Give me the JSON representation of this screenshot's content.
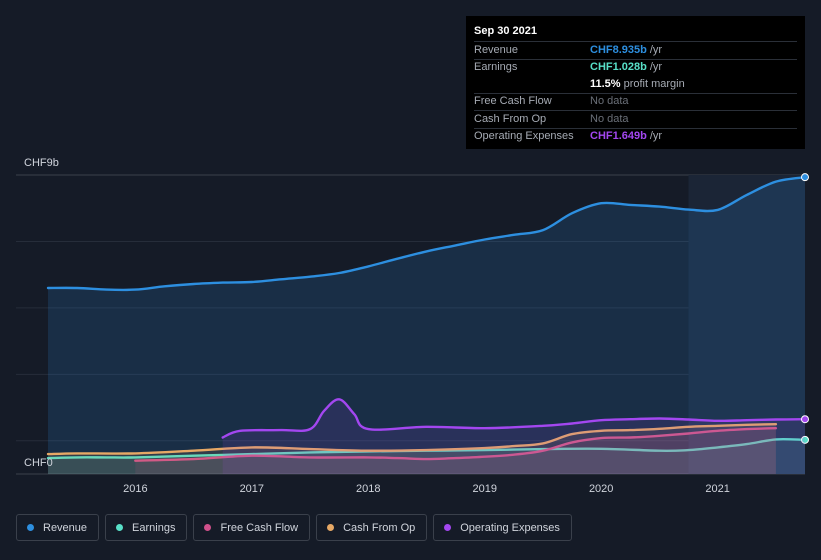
{
  "chart_data": {
    "type": "area",
    "y_top_label": "CHF9b",
    "y_bottom_label": "CHF0",
    "ylim": [
      0,
      9
    ],
    "xlim": [
      2015.25,
      2021.75
    ],
    "xticks": [
      "2016",
      "2017",
      "2018",
      "2019",
      "2020",
      "2021"
    ],
    "xtick_values": [
      2016,
      2017,
      2018,
      2019,
      2020,
      2021
    ],
    "grid": true,
    "legend_position": "bottom",
    "forecast_start": 2020.75,
    "series": [
      {
        "name": "Revenue",
        "color": "#2d8fe0",
        "x": [
          2015.25,
          2015.5,
          2015.75,
          2016.0,
          2016.25,
          2016.5,
          2016.75,
          2017.0,
          2017.25,
          2017.5,
          2017.75,
          2018.0,
          2018.25,
          2018.5,
          2018.75,
          2019.0,
          2019.25,
          2019.5,
          2019.75,
          2020.0,
          2020.25,
          2020.5,
          2020.75,
          2021.0,
          2021.25,
          2021.5,
          2021.75
        ],
        "values": [
          5.6,
          5.6,
          5.55,
          5.55,
          5.65,
          5.72,
          5.76,
          5.78,
          5.86,
          5.94,
          6.05,
          6.25,
          6.48,
          6.7,
          6.88,
          7.06,
          7.2,
          7.34,
          7.85,
          8.15,
          8.1,
          8.05,
          7.96,
          7.95,
          8.4,
          8.8,
          8.935
        ]
      },
      {
        "name": "Earnings",
        "color": "#58e0c8",
        "x": [
          2015.25,
          2015.5,
          2015.75,
          2016.0,
          2016.5,
          2017.0,
          2017.5,
          2018.0,
          2018.5,
          2019.0,
          2019.5,
          2020.0,
          2020.5,
          2020.75,
          2021.0,
          2021.25,
          2021.5,
          2021.75
        ],
        "values": [
          0.48,
          0.5,
          0.5,
          0.5,
          0.55,
          0.6,
          0.65,
          0.68,
          0.7,
          0.72,
          0.75,
          0.76,
          0.7,
          0.72,
          0.8,
          0.9,
          1.04,
          1.028
        ]
      },
      {
        "name": "Free Cash Flow",
        "color": "#d0508b",
        "x": [
          2016.0,
          2016.5,
          2017.0,
          2017.5,
          2018.0,
          2018.25,
          2018.5,
          2018.75,
          2019.0,
          2019.25,
          2019.5,
          2019.75,
          2020.0,
          2020.25,
          2020.5,
          2020.75,
          2021.0,
          2021.25,
          2021.5
        ],
        "values": [
          0.4,
          0.45,
          0.55,
          0.5,
          0.5,
          0.48,
          0.45,
          0.48,
          0.52,
          0.58,
          0.7,
          0.95,
          1.08,
          1.1,
          1.15,
          1.22,
          1.3,
          1.35,
          1.38
        ]
      },
      {
        "name": "Cash From Op",
        "color": "#e6a865",
        "x": [
          2015.25,
          2015.5,
          2016.0,
          2016.5,
          2017.0,
          2017.5,
          2018.0,
          2018.5,
          2019.0,
          2019.25,
          2019.5,
          2019.75,
          2020.0,
          2020.25,
          2020.5,
          2020.75,
          2021.0,
          2021.25,
          2021.5
        ],
        "values": [
          0.6,
          0.62,
          0.62,
          0.7,
          0.8,
          0.75,
          0.7,
          0.72,
          0.78,
          0.84,
          0.92,
          1.2,
          1.3,
          1.32,
          1.36,
          1.42,
          1.45,
          1.48,
          1.5
        ]
      },
      {
        "name": "Operating Expenses",
        "color": "#a347f0",
        "x": [
          2016.75,
          2016.9,
          2017.25,
          2017.5,
          2017.62,
          2017.75,
          2017.88,
          2018.0,
          2018.5,
          2019.0,
          2019.5,
          2019.75,
          2020.0,
          2020.25,
          2020.5,
          2020.75,
          2021.0,
          2021.25,
          2021.5,
          2021.75
        ],
        "values": [
          1.1,
          1.3,
          1.32,
          1.35,
          1.9,
          2.25,
          1.8,
          1.35,
          1.42,
          1.38,
          1.45,
          1.52,
          1.62,
          1.65,
          1.67,
          1.64,
          1.6,
          1.62,
          1.64,
          1.649
        ]
      }
    ]
  },
  "tooltip": {
    "date": "Sep 30 2021",
    "rows": [
      {
        "label": "Revenue",
        "value": "CHF8.935b",
        "unit": "/yr",
        "color": "#2d8fe0"
      },
      {
        "label": "Earnings",
        "value": "CHF1.028b",
        "unit": "/yr",
        "color": "#58e0c8"
      },
      {
        "label": "",
        "value": "11.5%",
        "unit": "profit margin",
        "color": "#ffffff"
      },
      {
        "label": "Free Cash Flow",
        "value": "No data",
        "unit": "",
        "color": ""
      },
      {
        "label": "Cash From Op",
        "value": "No data",
        "unit": "",
        "color": ""
      },
      {
        "label": "Operating Expenses",
        "value": "CHF1.649b",
        "unit": "/yr",
        "color": "#a347f0"
      }
    ]
  },
  "legend": [
    {
      "label": "Revenue",
      "color": "#2d8fe0"
    },
    {
      "label": "Earnings",
      "color": "#58e0c8"
    },
    {
      "label": "Free Cash Flow",
      "color": "#d0508b"
    },
    {
      "label": "Cash From Op",
      "color": "#e6a865"
    },
    {
      "label": "Operating Expenses",
      "color": "#a347f0"
    }
  ]
}
